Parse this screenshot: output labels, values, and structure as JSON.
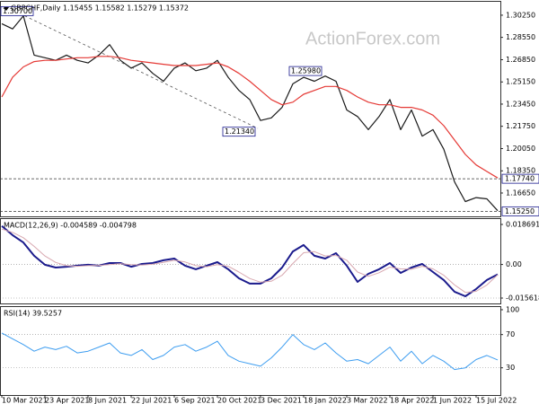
{
  "chart_data": [
    {
      "type": "line",
      "title": "GBPCHF,Daily  1.15455 1.15582 1.15279 1.15372",
      "watermark": "ActionForex.com",
      "ylim": [
        1.1507,
        1.3107
      ],
      "yticks": [
        {
          "value": 1.3025,
          "label": "1.30250"
        },
        {
          "value": 1.2855,
          "label": "1.28550"
        },
        {
          "value": 1.2685,
          "label": "1.26850"
        },
        {
          "value": 1.2515,
          "label": "1.25150"
        },
        {
          "value": 1.2345,
          "label": "1.23450"
        },
        {
          "value": 1.2175,
          "label": "1.21750"
        },
        {
          "value": 1.2005,
          "label": "1.20050"
        },
        {
          "value": 1.1835,
          "label": "1.18350"
        },
        {
          "value": 1.1665,
          "label": "1.16650"
        }
      ],
      "hlines": [
        {
          "value": 1.1774,
          "label": "1.17740"
        },
        {
          "value": 1.1525,
          "label": "1.15250"
        }
      ],
      "annotations": [
        {
          "value": 1.307,
          "label": "1.30700"
        },
        {
          "value": 1.2598,
          "label": "1.25980"
        },
        {
          "value": 1.2134,
          "label": "1.21340"
        }
      ],
      "series": [
        {
          "color": "#1a1a1a",
          "line_width": 1.2,
          "values": [
            1.296,
            1.292,
            1.302,
            1.272,
            1.27,
            1.268,
            1.272,
            1.268,
            1.266,
            1.272,
            1.28,
            1.268,
            1.262,
            1.266,
            1.258,
            1.252,
            1.262,
            1.266,
            1.26,
            1.262,
            1.268,
            1.255,
            1.245,
            1.238,
            1.222,
            1.224,
            1.232,
            1.25,
            1.255,
            1.252,
            1.256,
            1.252,
            1.23,
            1.225,
            1.215,
            1.225,
            1.238,
            1.215,
            1.23,
            1.21,
            1.215,
            1.2,
            1.175,
            1.16,
            1.163,
            1.162,
            1.153
          ]
        },
        {
          "color": "#e53935",
          "line_width": 1.2,
          "values": [
            1.24,
            1.255,
            1.263,
            1.267,
            1.268,
            1.268,
            1.269,
            1.27,
            1.27,
            1.271,
            1.271,
            1.27,
            1.268,
            1.267,
            1.266,
            1.265,
            1.264,
            1.264,
            1.264,
            1.265,
            1.266,
            1.263,
            1.258,
            1.252,
            1.245,
            1.238,
            1.234,
            1.236,
            1.242,
            1.245,
            1.248,
            1.248,
            1.245,
            1.24,
            1.236,
            1.234,
            1.234,
            1.232,
            1.232,
            1.23,
            1.226,
            1.218,
            1.207,
            1.196,
            1.188,
            1.183,
            1.178
          ]
        }
      ]
    },
    {
      "type": "line",
      "title": "MACD(12,26,9) -0.004589 -0.004798",
      "ylim": [
        -0.018128,
        0.02162
      ],
      "yticks": [
        0.018691,
        {
          "value": 0,
          "label": "0.00"
        },
        -0.015618
      ],
      "grid": true,
      "series": [
        {
          "color": "#1a1a8c",
          "line_width": 2,
          "values": [
            0.018,
            0.0137,
            0.0103,
            0.0041,
            -0.0001,
            -0.0014,
            -0.001,
            -0.0005,
            -0.0001,
            -0.0005,
            0.0007,
            0.0007,
            -0.001,
            0.0003,
            0.0007,
            0.002,
            0.0028,
            -0.0005,
            -0.0022,
            -0.0005,
            0.0011,
            -0.0022,
            -0.0064,
            -0.0089,
            -0.0089,
            -0.0064,
            -0.0014,
            0.0061,
            0.0091,
            0.0041,
            0.0028,
            0.0053,
            -0.0005,
            -0.0081,
            -0.0043,
            -0.0022,
            0.0007,
            -0.0039,
            -0.0014,
            0.0003,
            -0.0035,
            -0.0072,
            -0.0127,
            -0.0148,
            -0.0114,
            -0.0072,
            -0.004589
          ]
        },
        {
          "color": "#d8a8b0",
          "line_width": 1,
          "values": [
            0.0165,
            0.015,
            0.0125,
            0.0085,
            0.004,
            0.001,
            -0.0005,
            -0.0008,
            -0.0005,
            -0.0004,
            0.0,
            0.0004,
            0.0,
            -0.0002,
            0.0002,
            0.001,
            0.002,
            0.0012,
            -0.0005,
            -0.001,
            0.0,
            -0.0008,
            -0.0035,
            -0.0065,
            -0.0082,
            -0.0078,
            -0.005,
            0.0005,
            0.0055,
            0.006,
            0.004,
            0.0042,
            0.002,
            -0.0035,
            -0.0055,
            -0.0038,
            -0.0012,
            -0.002,
            -0.0022,
            -0.0008,
            -0.002,
            -0.005,
            -0.0095,
            -0.013,
            -0.0125,
            -0.0095,
            -0.004798
          ]
        }
      ]
    },
    {
      "type": "line",
      "title": "RSI(14) 39.5257",
      "ylim": [
        -2.7,
        104.3
      ],
      "yticks": [
        100,
        70,
        30
      ],
      "grid": true,
      "categories": [
        "10 Mar 2021",
        null,
        null,
        null,
        "23 Apr 2021",
        null,
        null,
        null,
        "8 Jun 2021",
        null,
        null,
        null,
        "22 Jul 2021",
        null,
        null,
        null,
        "6 Sep 2021",
        null,
        null,
        null,
        "20 Oct 2021",
        null,
        null,
        null,
        "3 Dec 2021",
        null,
        null,
        null,
        "18 Jan 2022",
        null,
        null,
        null,
        "3 Mar 2022",
        null,
        null,
        null,
        "18 Apr 2022",
        null,
        null,
        null,
        "1 Jun 2022",
        null,
        null,
        null,
        "15 Jul 2022",
        null,
        null
      ],
      "series": [
        {
          "color": "#3d9df0",
          "line_width": 1,
          "values": [
            72,
            65,
            58,
            50,
            55,
            52,
            56,
            48,
            50,
            55,
            60,
            48,
            45,
            52,
            40,
            45,
            55,
            58,
            50,
            55,
            62,
            45,
            38,
            35,
            32,
            42,
            55,
            70,
            58,
            52,
            60,
            48,
            38,
            40,
            35,
            45,
            55,
            38,
            50,
            35,
            45,
            38,
            28,
            30,
            40,
            45,
            39.5257
          ]
        }
      ]
    }
  ]
}
